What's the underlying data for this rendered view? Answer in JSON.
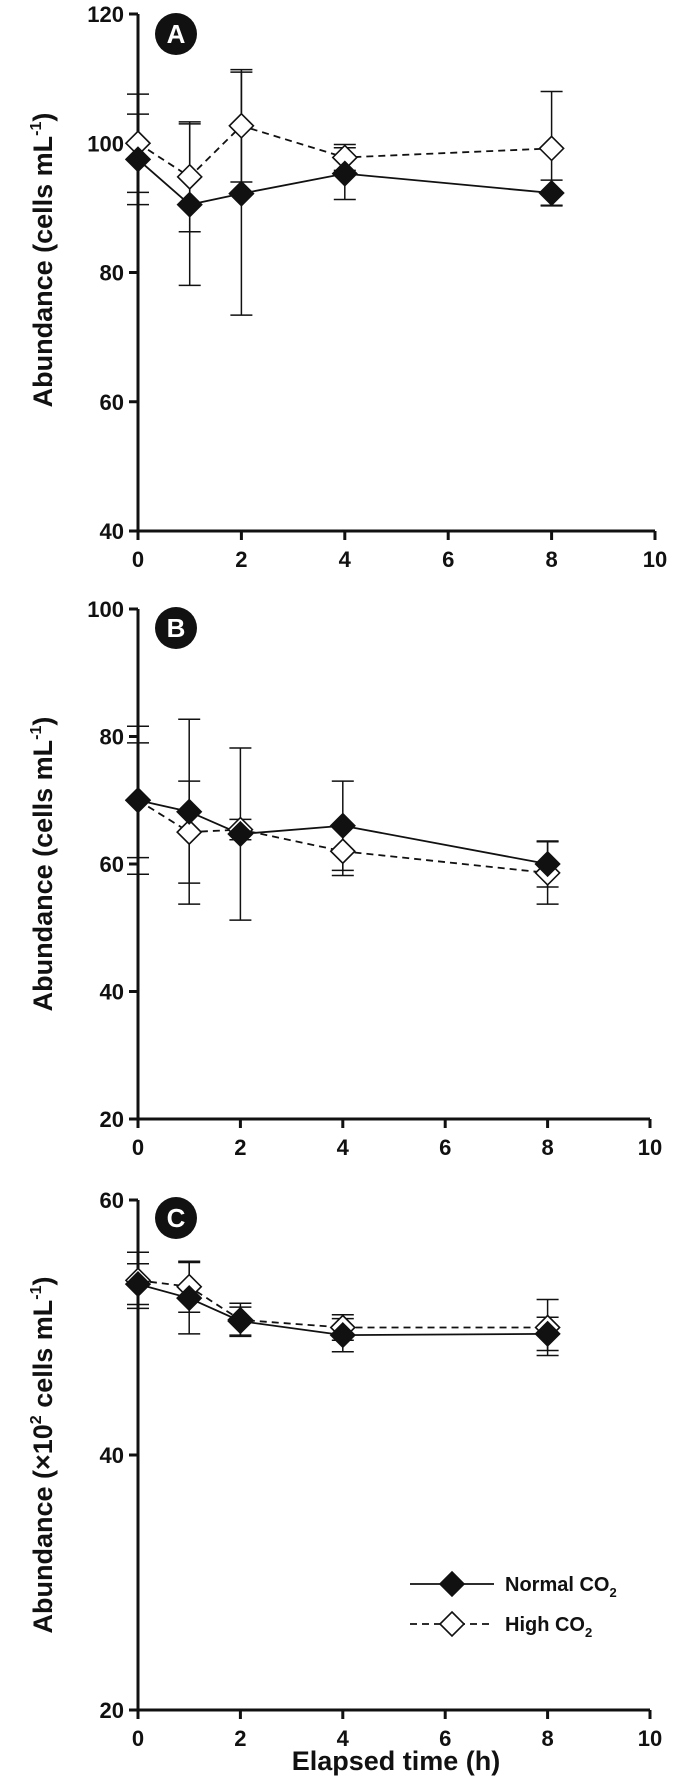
{
  "colors": {
    "axis": "#111111",
    "normal_marker": "#111111",
    "high_marker": "#ffffff",
    "badge": "#111111"
  },
  "x_axis_title": "Elapsed time (h)",
  "legend": {
    "placement": "bottom-right of panel C",
    "entries": [
      {
        "label": "Normal CO",
        "subscript": "2",
        "style": "solid line, filled diamond"
      },
      {
        "label": "High CO",
        "subscript": "2",
        "style": "dashed line, open diamond"
      }
    ]
  },
  "chart_data": [
    {
      "panel": "A",
      "type": "line",
      "ylabel": "Abundance (cells mL",
      "ylabel_superscript": "-1",
      "ylabel_close": ")",
      "xlim": [
        0,
        10
      ],
      "ylim": [
        40,
        120
      ],
      "xticks": [
        "0",
        "2",
        "4",
        "6",
        "8",
        "10"
      ],
      "yticks": [
        "40",
        "60",
        "80",
        "100",
        "120"
      ],
      "x": [
        0,
        1,
        2,
        4,
        8
      ],
      "series": [
        {
          "name": "Normal CO2",
          "values": [
            97.5,
            90.5,
            92.2,
            95.3,
            92.3
          ],
          "errors": [
            7.0,
            12.5,
            18.8,
            4.0,
            2.0
          ]
        },
        {
          "name": "High CO2",
          "values": [
            100.0,
            94.8,
            102.7,
            97.8,
            99.2
          ],
          "errors": [
            7.6,
            8.5,
            8.7,
            2.0,
            8.8
          ]
        }
      ]
    },
    {
      "panel": "B",
      "type": "line",
      "ylabel": "Abundance (cells mL",
      "ylabel_superscript": "-1",
      "ylabel_close": ")",
      "xlim": [
        0,
        10
      ],
      "ylim": [
        20,
        100
      ],
      "xticks": [
        "0",
        "2",
        "4",
        "6",
        "8",
        "10"
      ],
      "yticks": [
        "20",
        "40",
        "60",
        "80",
        "100"
      ],
      "x": [
        0,
        1,
        2,
        4,
        8
      ],
      "series": [
        {
          "name": "Normal CO2",
          "values": [
            70.0,
            68.2,
            64.7,
            66.0,
            60.0
          ],
          "errors": [
            11.6,
            14.5,
            13.5,
            7.0,
            3.6
          ]
        },
        {
          "name": "High CO2",
          "values": [
            70.0,
            65.0,
            65.4,
            62.0,
            58.6
          ],
          "errors": [
            9.0,
            8.0,
            1.6,
            3.8,
            4.9
          ]
        }
      ]
    },
    {
      "panel": "C",
      "type": "line",
      "ylabel": "Abundance (×10",
      "ylabel_superscript": "2",
      "ylabel_close": " cells mL",
      "ylabel_superscript2": "-1",
      "ylabel_end": ")",
      "xlim": [
        0,
        10
      ],
      "ylim": [
        20,
        60
      ],
      "xticks": [
        "0",
        "2",
        "4",
        "6",
        "8",
        "10"
      ],
      "yticks": [
        "20",
        "40",
        "60"
      ],
      "x": [
        0,
        1,
        2,
        4,
        8
      ],
      "series": [
        {
          "name": "Normal CO2",
          "values": [
            53.4,
            52.3,
            50.5,
            49.4,
            49.5
          ],
          "errors": [
            1.6,
            2.8,
            1.1,
            1.3,
            1.3
          ]
        },
        {
          "name": "High CO2",
          "values": [
            53.7,
            53.2,
            50.6,
            50.0,
            50.0
          ],
          "errors": [
            2.2,
            2.0,
            1.3,
            1.0,
            2.2
          ]
        }
      ]
    }
  ]
}
